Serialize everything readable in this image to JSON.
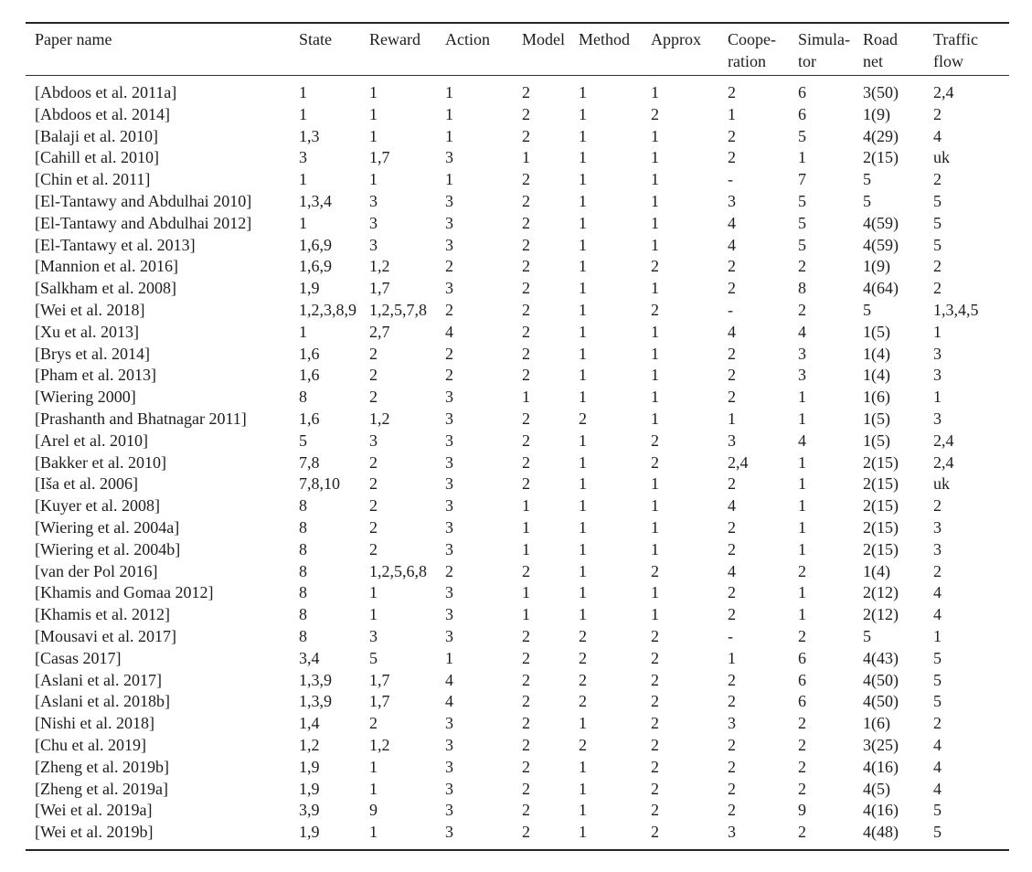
{
  "colors": {
    "background": "#ffffff",
    "text": "#1d1d1d",
    "rule_heavy": "#262626",
    "rule_light": "#2e2e2e"
  },
  "table": {
    "columns": [
      {
        "id": "paper-name",
        "lines": [
          "Paper name"
        ]
      },
      {
        "id": "state",
        "lines": [
          "State"
        ]
      },
      {
        "id": "reward",
        "lines": [
          "Reward"
        ]
      },
      {
        "id": "action",
        "lines": [
          "Action"
        ]
      },
      {
        "id": "model",
        "lines": [
          "Model"
        ]
      },
      {
        "id": "method",
        "lines": [
          "Method"
        ]
      },
      {
        "id": "approx",
        "lines": [
          "Approx"
        ]
      },
      {
        "id": "cooperation",
        "lines": [
          "Coope-",
          "ration"
        ]
      },
      {
        "id": "simulator",
        "lines": [
          "Simula-",
          "tor"
        ]
      },
      {
        "id": "road-net",
        "lines": [
          "Road",
          "net"
        ]
      },
      {
        "id": "traffic-flow",
        "lines": [
          "Traffic",
          "flow"
        ]
      }
    ],
    "rows": [
      [
        "[Abdoos et al. 2011a]",
        "1",
        "1",
        "1",
        "2",
        "1",
        "1",
        "2",
        "6",
        "3(50)",
        "2,4"
      ],
      [
        "[Abdoos et al. 2014]",
        "1",
        "1",
        "1",
        "2",
        "1",
        "2",
        "1",
        "6",
        "1(9)",
        "2"
      ],
      [
        "[Balaji et al. 2010]",
        "1,3",
        "1",
        "1",
        "2",
        "1",
        "1",
        "2",
        "5",
        "4(29)",
        "4"
      ],
      [
        "[Cahill et al. 2010]",
        "3",
        "1,7",
        "3",
        "1",
        "1",
        "1",
        "2",
        "1",
        "2(15)",
        "uk"
      ],
      [
        "[Chin et al. 2011]",
        "1",
        "1",
        "1",
        "2",
        "1",
        "1",
        "-",
        "7",
        "5",
        "2"
      ],
      [
        "[El-Tantawy and Abdulhai 2010]",
        "1,3,4",
        "3",
        "3",
        "2",
        "1",
        "1",
        "3",
        "5",
        "5",
        "5"
      ],
      [
        "[El-Tantawy and Abdulhai 2012]",
        "1",
        "3",
        "3",
        "2",
        "1",
        "1",
        "4",
        "5",
        "4(59)",
        "5"
      ],
      [
        "[El-Tantawy et al. 2013]",
        "1,6,9",
        "3",
        "3",
        "2",
        "1",
        "1",
        "4",
        "5",
        "4(59)",
        "5"
      ],
      [
        "[Mannion et al. 2016]",
        "1,6,9",
        "1,2",
        "2",
        "2",
        "1",
        "2",
        "2",
        "2",
        "1(9)",
        "2"
      ],
      [
        "[Salkham et al. 2008]",
        "1,9",
        "1,7",
        "3",
        "2",
        "1",
        "1",
        "2",
        "8",
        "4(64)",
        "2"
      ],
      [
        "[Wei et al. 2018]",
        "1,2,3,8,9",
        "1,2,5,7,8",
        "2",
        "2",
        "1",
        "2",
        "-",
        "2",
        "5",
        "1,3,4,5"
      ],
      [
        "[Xu et al. 2013]",
        "1",
        "2,7",
        "4",
        "2",
        "1",
        "1",
        "4",
        "4",
        "1(5)",
        "1"
      ],
      [
        "[Brys et al. 2014]",
        "1,6",
        "2",
        "2",
        "2",
        "1",
        "1",
        "2",
        "3",
        "1(4)",
        "3"
      ],
      [
        "[Pham et al. 2013]",
        "1,6",
        "2",
        "2",
        "2",
        "1",
        "1",
        "2",
        "3",
        "1(4)",
        "3"
      ],
      [
        "[Wiering 2000]",
        "8",
        "2",
        "3",
        "1",
        "1",
        "1",
        "2",
        "1",
        "1(6)",
        "1"
      ],
      [
        "[Prashanth and Bhatnagar 2011]",
        "1,6",
        "1,2",
        "3",
        "2",
        "2",
        "1",
        "1",
        "1",
        "1(5)",
        "3"
      ],
      [
        "[Arel et al. 2010]",
        "5",
        "3",
        "3",
        "2",
        "1",
        "2",
        "3",
        "4",
        "1(5)",
        "2,4"
      ],
      [
        "[Bakker et al. 2010]",
        "7,8",
        "2",
        "3",
        "2",
        "1",
        "2",
        "2,4",
        "1",
        "2(15)",
        "2,4"
      ],
      [
        "[Iša et al. 2006]",
        "7,8,10",
        "2",
        "3",
        "2",
        "1",
        "1",
        "2",
        "1",
        "2(15)",
        "uk"
      ],
      [
        "[Kuyer et al. 2008]",
        "8",
        "2",
        "3",
        "1",
        "1",
        "1",
        "4",
        "1",
        "2(15)",
        "2"
      ],
      [
        "[Wiering et al. 2004a]",
        "8",
        "2",
        "3",
        "1",
        "1",
        "1",
        "2",
        "1",
        "2(15)",
        "3"
      ],
      [
        "[Wiering et al. 2004b]",
        "8",
        "2",
        "3",
        "1",
        "1",
        "1",
        "2",
        "1",
        "2(15)",
        "3"
      ],
      [
        "[van der Pol 2016]",
        "8",
        "1,2,5,6,8",
        "2",
        "2",
        "1",
        "2",
        "4",
        "2",
        "1(4)",
        "2"
      ],
      [
        "[Khamis and Gomaa 2012]",
        "8",
        "1",
        "3",
        "1",
        "1",
        "1",
        "2",
        "1",
        "2(12)",
        "4"
      ],
      [
        "[Khamis et al. 2012]",
        "8",
        "1",
        "3",
        "1",
        "1",
        "1",
        "2",
        "1",
        "2(12)",
        "4"
      ],
      [
        "[Mousavi et al. 2017]",
        "8",
        "3",
        "3",
        "2",
        "2",
        "2",
        "-",
        "2",
        "5",
        "1"
      ],
      [
        "[Casas 2017]",
        "3,4",
        "5",
        "1",
        "2",
        "2",
        "2",
        "1",
        "6",
        "4(43)",
        "5"
      ],
      [
        "[Aslani et al. 2017]",
        "1,3,9",
        "1,7",
        "4",
        "2",
        "2",
        "2",
        "2",
        "6",
        "4(50)",
        "5"
      ],
      [
        "[Aslani et al. 2018b]",
        "1,3,9",
        "1,7",
        "4",
        "2",
        "2",
        "2",
        "2",
        "6",
        "4(50)",
        "5"
      ],
      [
        "[Nishi et al. 2018]",
        "1,4",
        "2",
        "3",
        "2",
        "1",
        "2",
        "3",
        "2",
        "1(6)",
        "2"
      ],
      [
        "[Chu et al. 2019]",
        "1,2",
        "1,2",
        "3",
        "2",
        "2",
        "2",
        "2",
        "2",
        "3(25)",
        "4"
      ],
      [
        "[Zheng et al. 2019b]",
        "1,9",
        "1",
        "3",
        "2",
        "1",
        "2",
        "2",
        "2",
        "4(16)",
        "4"
      ],
      [
        "[Zheng et al. 2019a]",
        "1,9",
        "1",
        "3",
        "2",
        "1",
        "2",
        "2",
        "2",
        "4(5)",
        "4"
      ],
      [
        "[Wei et al. 2019a]",
        "3,9",
        "9",
        "3",
        "2",
        "1",
        "2",
        "2",
        "9",
        "4(16)",
        "5"
      ],
      [
        "[Wei et al. 2019b]",
        "1,9",
        "1",
        "3",
        "2",
        "1",
        "2",
        "3",
        "2",
        "4(48)",
        "5"
      ]
    ]
  }
}
